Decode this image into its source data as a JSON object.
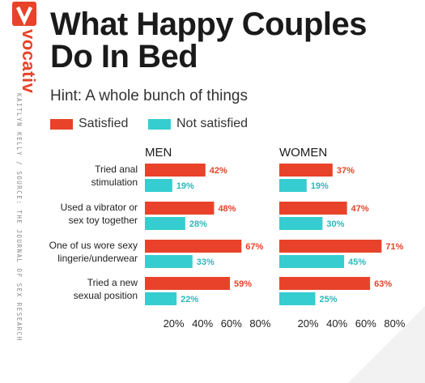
{
  "brand": {
    "logo_letter": "v",
    "name": "vocativ",
    "credit": "KAITLYN KELLY / SOURCE: THE JOURNAL OF SEX RESEARCH"
  },
  "title": "What Happy Couples Do In Bed",
  "subtitle": "Hint: A whole bunch of things",
  "colors": {
    "satisfied": "#e8432a",
    "not_satisfied": "#36cdd0",
    "brand": "#e8432a"
  },
  "legend": [
    {
      "label": "Satisfied",
      "color": "#e8432a"
    },
    {
      "label": "Not satisfied",
      "color": "#36cdd0"
    }
  ],
  "chart_data": {
    "type": "bar",
    "orientation": "horizontal",
    "categories": [
      [
        "Tried anal",
        "stimulation"
      ],
      [
        "Used a vibrator or",
        "sex toy together"
      ],
      [
        "One of us wore sexy",
        "lingerie/underwear"
      ],
      [
        "Tried a new",
        "sexual position"
      ]
    ],
    "value_suffix": "%",
    "xlim": [
      0,
      80
    ],
    "xticks": [
      "20%",
      "40%",
      "60%",
      "80%"
    ],
    "xtick_values": [
      20,
      40,
      60,
      80
    ],
    "grid": false,
    "legend_position": "top-left",
    "panels": [
      {
        "title": "MEN",
        "series": [
          {
            "name": "Satisfied",
            "values": [
              42,
              48,
              67,
              59
            ]
          },
          {
            "name": "Not satisfied",
            "values": [
              19,
              28,
              33,
              22
            ]
          }
        ]
      },
      {
        "title": "WOMEN",
        "series": [
          {
            "name": "Satisfied",
            "values": [
              37,
              47,
              71,
              63
            ]
          },
          {
            "name": "Not satisfied",
            "values": [
              19,
              30,
              45,
              25
            ]
          }
        ]
      }
    ]
  }
}
